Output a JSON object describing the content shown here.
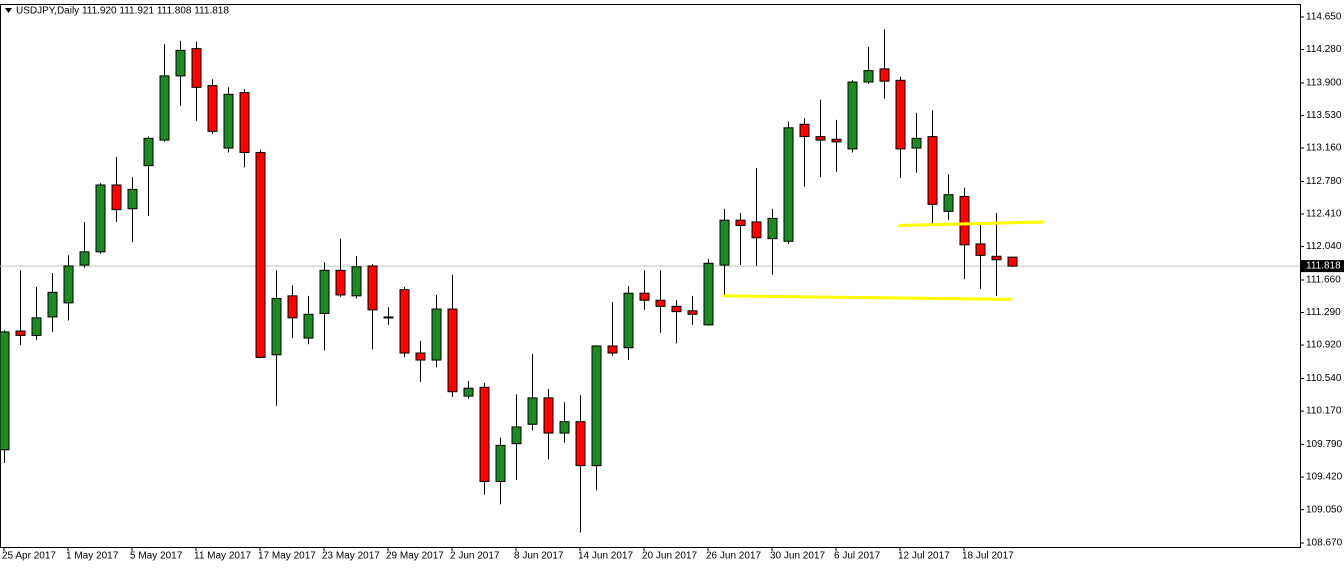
{
  "chart_data": {
    "type": "candlestick",
    "title": "USDJPY,Daily  111.920 111.921 111.808 111.818",
    "categories": [
      "25 Apr 2017",
      null,
      null,
      null,
      "1 May 2017",
      null,
      null,
      null,
      "5 May 2017",
      null,
      null,
      null,
      "11 May 2017",
      null,
      null,
      null,
      "17 May 2017",
      null,
      null,
      null,
      "23 May 2017",
      null,
      null,
      null,
      "29 May 2017",
      null,
      null,
      null,
      "2 Jun 2017",
      null,
      null,
      null,
      "8 Jun 2017",
      null,
      null,
      null,
      "14 Jun 2017",
      null,
      null,
      null,
      "20 Jun 2017",
      null,
      null,
      null,
      "26 Jun 2017",
      null,
      null,
      null,
      "30 Jun 2017",
      null,
      null,
      null,
      "6 Jul 2017",
      null,
      null,
      null,
      "12 Jul 2017",
      null,
      null,
      null,
      "18 Jul 2017",
      null,
      null,
      null
    ],
    "open": [
      109.73,
      111.08,
      111.03,
      111.24,
      111.4,
      111.83,
      111.98,
      112.74,
      112.47,
      112.96,
      113.25,
      113.98,
      114.29,
      113.87,
      113.16,
      113.79,
      113.11,
      110.81,
      111.48,
      111.0,
      111.28,
      111.77,
      111.48,
      111.82,
      111.24,
      111.55,
      110.83,
      110.75,
      111.33,
      110.34,
      110.44,
      109.37,
      109.8,
      110.02,
      110.32,
      109.92,
      110.05,
      109.55,
      110.91,
      110.89,
      111.51,
      111.43,
      111.36,
      111.31,
      111.15,
      111.83,
      112.34,
      112.32,
      112.13,
      112.1,
      113.43,
      113.29,
      113.26,
      113.15,
      113.91,
      114.06,
      113.93,
      113.16,
      113.29,
      112.44,
      112.61,
      112.07,
      111.93,
      111.92
    ],
    "high": [
      111.09,
      111.77,
      111.58,
      111.74,
      111.94,
      112.32,
      112.76,
      113.06,
      112.83,
      113.29,
      114.34,
      114.38,
      114.37,
      113.94,
      113.85,
      113.83,
      113.14,
      111.77,
      111.6,
      111.48,
      111.86,
      112.13,
      111.93,
      111.84,
      111.35,
      111.58,
      110.97,
      111.49,
      111.72,
      110.51,
      110.49,
      109.87,
      110.36,
      110.82,
      110.42,
      110.27,
      110.35,
      110.92,
      111.41,
      111.59,
      111.77,
      111.77,
      111.43,
      111.48,
      111.9,
      112.47,
      112.42,
      112.93,
      112.47,
      113.46,
      113.5,
      113.71,
      113.48,
      113.93,
      114.31,
      114.51,
      113.97,
      113.56,
      113.59,
      112.86,
      112.71,
      112.31,
      112.42,
      111.921
    ],
    "low": [
      109.58,
      110.92,
      110.98,
      111.07,
      111.2,
      111.8,
      111.96,
      112.32,
      112.09,
      112.39,
      113.23,
      113.64,
      113.47,
      113.32,
      113.11,
      112.94,
      110.77,
      110.23,
      111.0,
      110.93,
      110.86,
      111.47,
      111.45,
      110.87,
      111.15,
      110.78,
      110.5,
      110.67,
      110.33,
      110.31,
      109.22,
      109.11,
      109.39,
      109.95,
      109.62,
      109.81,
      108.79,
      109.27,
      110.8,
      110.75,
      111.32,
      111.06,
      110.94,
      111.15,
      111.14,
      111.47,
      111.83,
      111.82,
      111.72,
      112.07,
      112.72,
      112.83,
      112.89,
      113.11,
      113.89,
      113.72,
      112.82,
      112.88,
      112.28,
      112.34,
      111.67,
      111.56,
      111.48,
      111.808
    ],
    "close": [
      111.07,
      111.03,
      111.23,
      111.52,
      111.82,
      111.98,
      112.74,
      112.46,
      112.69,
      113.27,
      113.98,
      114.27,
      113.85,
      113.35,
      113.77,
      113.11,
      110.78,
      111.45,
      111.23,
      111.27,
      111.77,
      111.49,
      111.81,
      111.32,
      111.23,
      110.83,
      110.75,
      111.33,
      110.39,
      110.43,
      109.37,
      109.78,
      109.99,
      110.32,
      109.92,
      110.05,
      109.55,
      110.91,
      110.83,
      111.51,
      111.43,
      111.36,
      111.3,
      111.27,
      111.85,
      112.34,
      112.28,
      112.14,
      112.36,
      113.39,
      113.29,
      113.25,
      113.23,
      113.91,
      114.04,
      113.92,
      113.15,
      113.27,
      112.52,
      112.63,
      112.06,
      111.94,
      111.89,
      111.818
    ],
    "up_color": "#1f8a1f",
    "down_color": "#ff0000",
    "ylim": [
      108.625,
      114.786
    ],
    "yticks": [
      {
        "value": 114.65,
        "label": "114.650"
      },
      {
        "value": 114.28,
        "label": "114.280"
      },
      {
        "value": 113.9,
        "label": "113.900"
      },
      {
        "value": 113.53,
        "label": "113.530"
      },
      {
        "value": 113.16,
        "label": "113.160"
      },
      {
        "value": 112.78,
        "label": "112.780"
      },
      {
        "value": 112.41,
        "label": "112.410"
      },
      {
        "value": 112.04,
        "label": "112.040"
      },
      {
        "value": 111.66,
        "label": "111.660"
      },
      {
        "value": 111.29,
        "label": "111.290"
      },
      {
        "value": 110.92,
        "label": "110.920"
      },
      {
        "value": 110.54,
        "label": "110.540"
      },
      {
        "value": 110.17,
        "label": "110.170"
      },
      {
        "value": 109.79,
        "label": "109.790"
      },
      {
        "value": 109.42,
        "label": "109.420"
      },
      {
        "value": 109.05,
        "label": "109.050"
      },
      {
        "value": 108.67,
        "label": "108.670"
      }
    ],
    "price_line": {
      "value": 111.818,
      "label": "111.818"
    },
    "trendlines": [
      {
        "color": "#ffff00",
        "x": [
          55.9,
          65
        ],
        "y": [
          112.28,
          112.32
        ]
      },
      {
        "color": "#ffff00",
        "x": [
          44.9,
          63
        ],
        "y": [
          111.48,
          111.44
        ]
      }
    ]
  }
}
